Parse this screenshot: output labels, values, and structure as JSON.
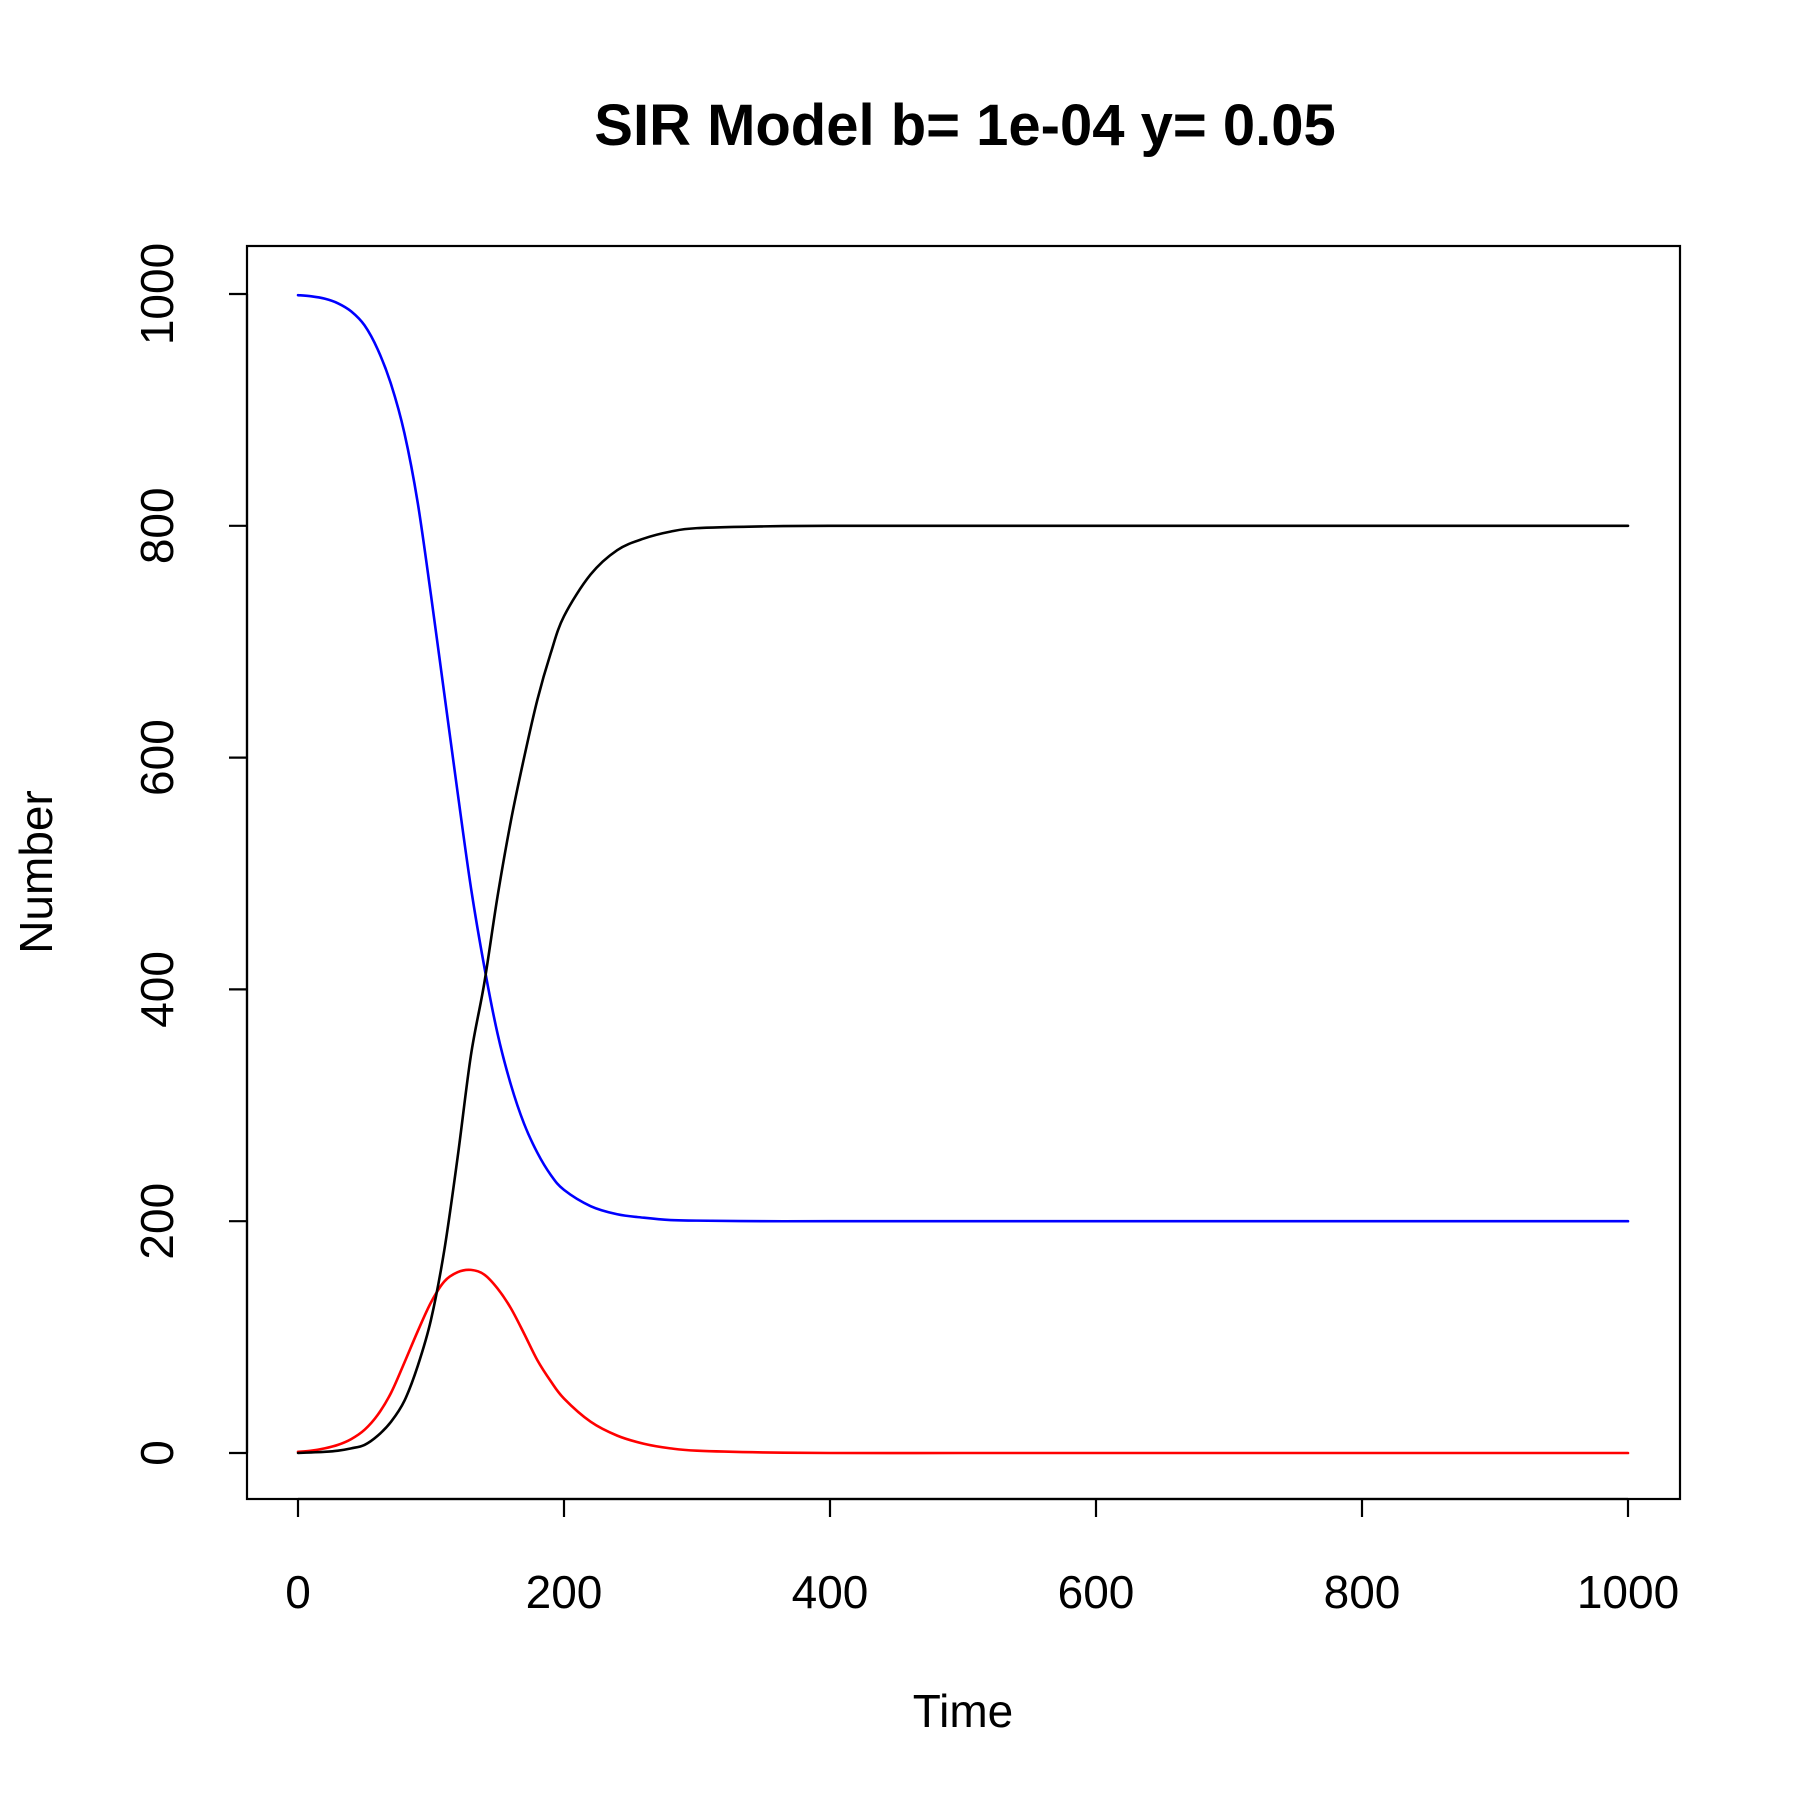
{
  "chart_data": {
    "type": "line",
    "title": "SIR Model b= 1e-04 y= 0.05",
    "xlabel": "Time",
    "ylabel": "Number",
    "xlim": [
      0,
      1000
    ],
    "ylim": [
      0,
      1000
    ],
    "xticks": [
      0,
      200,
      400,
      600,
      800,
      1000
    ],
    "yticks": [
      0,
      200,
      400,
      600,
      800,
      1000
    ],
    "x": [
      0,
      10,
      20,
      30,
      40,
      50,
      60,
      70,
      80,
      90,
      100,
      110,
      120,
      130,
      140,
      150,
      160,
      170,
      180,
      190,
      200,
      220,
      240,
      260,
      280,
      300,
      350,
      400,
      500,
      600,
      700,
      800,
      900,
      1000
    ],
    "series": [
      {
        "color": "#0000ff",
        "values": [
          999,
          998,
          996,
          992,
          985,
          973,
          952,
          922,
          880,
          820,
          740,
          655,
          570,
          488,
          420,
          362,
          318,
          284,
          259,
          240,
          227,
          213,
          206,
          203,
          201,
          200.5,
          200,
          200,
          200,
          200,
          200,
          200,
          200,
          200
        ]
      },
      {
        "color": "#ff0000",
        "values": [
          1,
          2,
          4,
          7,
          12,
          20,
          33,
          52,
          78,
          105,
          130,
          148,
          156,
          158,
          154,
          142,
          125,
          103,
          80,
          62,
          47,
          27,
          15,
          8,
          4,
          2,
          0.5,
          0,
          0,
          0,
          0,
          0,
          0,
          0
        ]
      },
      {
        "color": "#000000",
        "values": [
          0,
          0.5,
          1,
          2,
          4,
          7,
          15,
          27,
          45,
          75,
          115,
          175,
          255,
          343,
          405,
          480,
          545,
          600,
          650,
          690,
          722,
          758,
          779,
          789,
          795,
          798,
          799.5,
          800,
          800,
          800,
          800,
          800,
          800,
          800
        ]
      }
    ],
    "grid": false,
    "legend": "none"
  }
}
